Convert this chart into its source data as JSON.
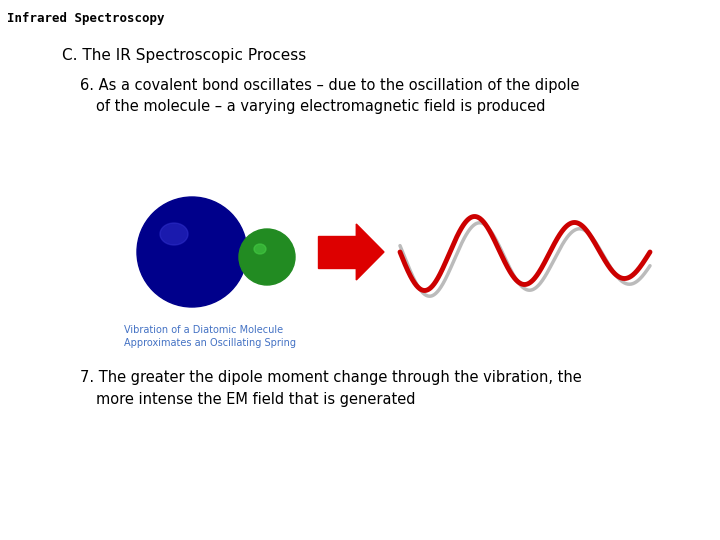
{
  "title": "Infrared Spectroscopy",
  "heading": "C. The IR Spectroscopic Process",
  "point6_line1": "6. As a covalent bond oscillates – due to the oscillation of the dipole",
  "point6_line2": "of the molecule – a varying electromagnetic field is produced",
  "point7_line1": "7. The greater the dipole moment change through the vibration, the",
  "point7_line2": "more intense the EM field that is generated",
  "caption_line1": "Vibration of a Diatomic Molecule",
  "caption_line2": "Approximates an Oscillating Spring",
  "bg_color": "#ffffff",
  "title_color": "#000000",
  "heading_color": "#000000",
  "body_color": "#000000",
  "caption_color": "#4472c4",
  "arrow_color": "#dd0000",
  "wave_color": "#cc0000",
  "wave_shadow_color": "#bbbbbb",
  "sphere_big_color": "#00008b",
  "sphere_small_color": "#228b22",
  "sphere_highlight_big": "#3030cc",
  "sphere_highlight_small": "#44cc44"
}
